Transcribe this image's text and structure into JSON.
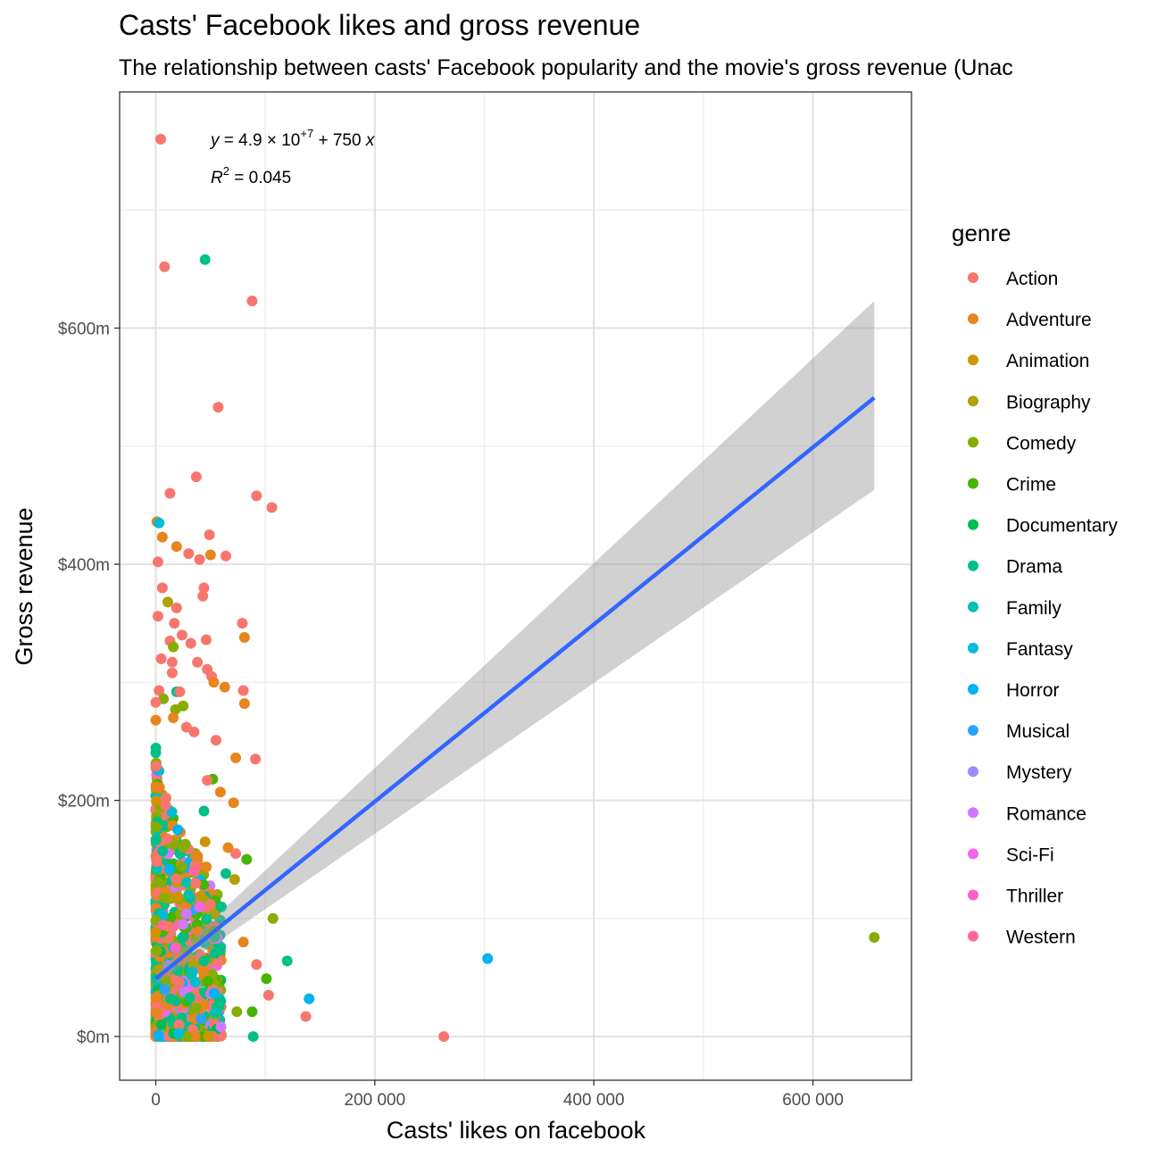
{
  "chart_data": {
    "type": "scatter",
    "title": "Casts' Facebook likes and gross revenue",
    "subtitle": "The relationship between casts' Facebook popularity and the movie's gross revenue (Unac",
    "xlabel": "Casts' likes on facebook",
    "ylabel": "Gross revenue",
    "xlim": [
      -33000,
      690000
    ],
    "ylim": [
      -37000000,
      800000000
    ],
    "xticks": [
      0,
      200000,
      400000,
      600000
    ],
    "xtick_labels": [
      "0",
      "200 000",
      "400 000",
      "600 000"
    ],
    "yticks": [
      0,
      200000000,
      400000000,
      600000000
    ],
    "ytick_labels": [
      "$0m",
      "$200m",
      "$400m",
      "$600m"
    ],
    "grid": true,
    "legend": {
      "title": "genre",
      "position": "right",
      "entries": [
        {
          "label": "Action",
          "color": "#F8766D"
        },
        {
          "label": "Adventure",
          "color": "#E7851E"
        },
        {
          "label": "Animation",
          "color": "#D09400"
        },
        {
          "label": "Biography",
          "color": "#B2A100"
        },
        {
          "label": "Comedy",
          "color": "#89AC00"
        },
        {
          "label": "Crime",
          "color": "#45B500"
        },
        {
          "label": "Documentary",
          "color": "#00BC51"
        },
        {
          "label": "Drama",
          "color": "#00C087"
        },
        {
          "label": "Family",
          "color": "#00C0B2"
        },
        {
          "label": "Fantasy",
          "color": "#00BCD6"
        },
        {
          "label": "Horror",
          "color": "#00B3F2"
        },
        {
          "label": "Musical",
          "color": "#29A3FF"
        },
        {
          "label": "Mystery",
          "color": "#9C8DFF"
        },
        {
          "label": "Romance",
          "color": "#D277FF"
        },
        {
          "label": "Sci-Fi",
          "color": "#F166E8"
        },
        {
          "label": "Thriller",
          "color": "#FF61C7"
        },
        {
          "label": "Western",
          "color": "#FF689E"
        }
      ]
    },
    "regression": {
      "intercept": 49000000,
      "slope": 750,
      "x_range": [
        0,
        656000
      ],
      "se_band_low": [
        [
          0,
          44000000
        ],
        [
          656000,
          463000000
        ]
      ],
      "se_band_high": [
        [
          0,
          54000000
        ],
        [
          656000,
          623000000
        ]
      ],
      "line_color": "#3366FF",
      "band_color": "#999999"
    },
    "annotation": {
      "equation_lhs": "y",
      "equation_eq": " = 4.9 × 10",
      "equation_exp": "+7",
      "equation_rest": " + 750 ",
      "equation_var": "x",
      "r2_lhs": "R",
      "r2_exp": "2",
      "r2_rest": " = 0.045"
    },
    "points": [
      {
        "genre": "Action",
        "x": 4500,
        "y": 760000000
      },
      {
        "genre": "Action",
        "x": 8000,
        "y": 652000000
      },
      {
        "genre": "Drama",
        "x": 45000,
        "y": 658000000
      },
      {
        "genre": "Action",
        "x": 88000,
        "y": 623000000
      },
      {
        "genre": "Action",
        "x": 57000,
        "y": 533000000
      },
      {
        "genre": "Action",
        "x": 37000,
        "y": 474000000
      },
      {
        "genre": "Action",
        "x": 13000,
        "y": 460000000
      },
      {
        "genre": "Action",
        "x": 92000,
        "y": 458000000
      },
      {
        "genre": "Action",
        "x": 106000,
        "y": 448000000
      },
      {
        "genre": "Adventure",
        "x": 1000,
        "y": 436000000
      },
      {
        "genre": "Fantasy",
        "x": 3000,
        "y": 435000000
      },
      {
        "genre": "Action",
        "x": 49000,
        "y": 425000000
      },
      {
        "genre": "Adventure",
        "x": 6000,
        "y": 423000000
      },
      {
        "genre": "Adventure",
        "x": 19000,
        "y": 415000000
      },
      {
        "genre": "Action",
        "x": 30000,
        "y": 409000000
      },
      {
        "genre": "Adventure",
        "x": 50000,
        "y": 408000000
      },
      {
        "genre": "Action",
        "x": 64000,
        "y": 407000000
      },
      {
        "genre": "Action",
        "x": 40000,
        "y": 404000000
      },
      {
        "genre": "Action",
        "x": 2000,
        "y": 402000000
      },
      {
        "genre": "Action",
        "x": 6000,
        "y": 380000000
      },
      {
        "genre": "Action",
        "x": 44000,
        "y": 380000000
      },
      {
        "genre": "Action",
        "x": 43000,
        "y": 373000000
      },
      {
        "genre": "Biography",
        "x": 11000,
        "y": 368000000
      },
      {
        "genre": "Action",
        "x": 19000,
        "y": 363000000
      },
      {
        "genre": "Action",
        "x": 2000,
        "y": 356000000
      },
      {
        "genre": "Action",
        "x": 17000,
        "y": 350000000
      },
      {
        "genre": "Action",
        "x": 79000,
        "y": 350000000
      },
      {
        "genre": "Adventure",
        "x": 81000,
        "y": 338000000
      },
      {
        "genre": "Action",
        "x": 46000,
        "y": 336000000
      },
      {
        "genre": "Action",
        "x": 13000,
        "y": 335000000
      },
      {
        "genre": "Action",
        "x": 32000,
        "y": 333000000
      },
      {
        "genre": "Comedy",
        "x": 16000,
        "y": 330000000
      },
      {
        "genre": "Action",
        "x": 24000,
        "y": 340000000
      },
      {
        "genre": "Action",
        "x": 5000,
        "y": 320000000
      },
      {
        "genre": "Action",
        "x": 15000,
        "y": 317000000
      },
      {
        "genre": "Action",
        "x": 38000,
        "y": 317000000
      },
      {
        "genre": "Action",
        "x": 47000,
        "y": 311000000
      },
      {
        "genre": "Action",
        "x": 15000,
        "y": 308000000
      },
      {
        "genre": "Action",
        "x": 51000,
        "y": 305000000
      },
      {
        "genre": "Adventure",
        "x": 53000,
        "y": 300000000
      },
      {
        "genre": "Adventure",
        "x": 63000,
        "y": 296000000
      },
      {
        "genre": "Action",
        "x": 80000,
        "y": 293000000
      },
      {
        "genre": "Action",
        "x": 3000,
        "y": 293000000
      },
      {
        "genre": "Drama",
        "x": 19000,
        "y": 292000000
      },
      {
        "genre": "Action",
        "x": 22000,
        "y": 292000000
      },
      {
        "genre": "Comedy",
        "x": 7000,
        "y": 286000000
      },
      {
        "genre": "Action",
        "x": 0,
        "y": 283000000
      },
      {
        "genre": "Adventure",
        "x": 81000,
        "y": 282000000
      },
      {
        "genre": "Comedy",
        "x": 25000,
        "y": 280000000
      },
      {
        "genre": "Comedy",
        "x": 18000,
        "y": 277000000
      },
      {
        "genre": "Adventure",
        "x": 16000,
        "y": 270000000
      },
      {
        "genre": "Adventure",
        "x": 0,
        "y": 268000000
      },
      {
        "genre": "Action",
        "x": 28000,
        "y": 262000000
      },
      {
        "genre": "Action",
        "x": 35000,
        "y": 258000000
      },
      {
        "genre": "Action",
        "x": 55000,
        "y": 251000000
      },
      {
        "genre": "Adventure",
        "x": 73000,
        "y": 236000000
      },
      {
        "genre": "Action",
        "x": 91000,
        "y": 235000000
      },
      {
        "genre": "Crime",
        "x": 52000,
        "y": 218000000
      },
      {
        "genre": "Action",
        "x": 47000,
        "y": 217000000
      },
      {
        "genre": "Adventure",
        "x": 59000,
        "y": 207000000
      },
      {
        "genre": "Adventure",
        "x": 71000,
        "y": 198000000
      },
      {
        "genre": "Drama",
        "x": 44000,
        "y": 191000000
      },
      {
        "genre": "Adventure",
        "x": 66000,
        "y": 160000000
      },
      {
        "genre": "Action",
        "x": 73000,
        "y": 155000000
      },
      {
        "genre": "Crime",
        "x": 83000,
        "y": 150000000
      },
      {
        "genre": "Drama",
        "x": 64000,
        "y": 138000000
      },
      {
        "genre": "Biography",
        "x": 72000,
        "y": 133000000
      },
      {
        "genre": "Comedy",
        "x": 107000,
        "y": 100000000
      },
      {
        "genre": "Adventure",
        "x": 80000,
        "y": 80000000
      },
      {
        "genre": "Drama",
        "x": 120000,
        "y": 64000000
      },
      {
        "genre": "Action",
        "x": 92000,
        "y": 61000000
      },
      {
        "genre": "Crime",
        "x": 101000,
        "y": 49000000
      },
      {
        "genre": "Action",
        "x": 103000,
        "y": 35000000
      },
      {
        "genre": "Horror",
        "x": 140000,
        "y": 32000000
      },
      {
        "genre": "Crime",
        "x": 88000,
        "y": 21000000
      },
      {
        "genre": "Comedy",
        "x": 74000,
        "y": 21000000
      },
      {
        "genre": "Action",
        "x": 137000,
        "y": 17000000
      },
      {
        "genre": "Drama",
        "x": 89000,
        "y": 0
      },
      {
        "genre": "Action",
        "x": 263000,
        "y": 0
      },
      {
        "genre": "Horror",
        "x": 303000,
        "y": 66000000
      },
      {
        "genre": "Comedy",
        "x": 656000,
        "y": 84000000
      },
      {
        "genre": "Family",
        "x": 30000,
        "y": 120000000
      },
      {
        "genre": "Mystery",
        "x": 12000,
        "y": 60000000
      },
      {
        "genre": "Romance",
        "x": 25000,
        "y": 95000000
      },
      {
        "genre": "Sci-Fi",
        "x": 40000,
        "y": 110000000
      },
      {
        "genre": "Thriller",
        "x": 18000,
        "y": 75000000
      },
      {
        "genre": "Western",
        "x": 35000,
        "y": 140000000
      },
      {
        "genre": "Musical",
        "x": 8000,
        "y": 40000000
      },
      {
        "genre": "Documentary",
        "x": 5000,
        "y": 10000000
      },
      {
        "genre": "Animation",
        "x": 45000,
        "y": 165000000
      }
    ]
  }
}
